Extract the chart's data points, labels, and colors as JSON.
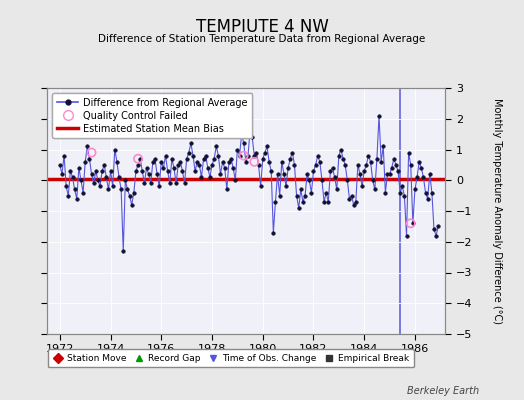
{
  "title": "TEMPIUTE 4 NW",
  "subtitle": "Difference of Station Temperature Data from Regional Average",
  "ylabel_right": "Monthly Temperature Anomaly Difference (°C)",
  "xlim": [
    1971.5,
    1987.2
  ],
  "ylim": [
    -5,
    3
  ],
  "yticks": [
    -5,
    -4,
    -3,
    -2,
    -1,
    0,
    1,
    2,
    3
  ],
  "xticks": [
    1972,
    1974,
    1976,
    1978,
    1980,
    1982,
    1984,
    1986
  ],
  "bias_line_y": 0.05,
  "bias_color": "#cc0000",
  "line_color": "#5555dd",
  "qc_color": "#ff88cc",
  "bg_color": "#e8e8e8",
  "plot_bg_color": "#f0f0f8",
  "watermark": "Berkeley Earth",
  "times": [
    1972.0,
    1972.083,
    1972.167,
    1972.25,
    1972.333,
    1972.417,
    1972.5,
    1972.583,
    1972.667,
    1972.75,
    1972.833,
    1972.917,
    1973.0,
    1973.083,
    1973.167,
    1973.25,
    1973.333,
    1973.417,
    1973.5,
    1973.583,
    1973.667,
    1973.75,
    1973.833,
    1973.917,
    1974.0,
    1974.083,
    1974.167,
    1974.25,
    1974.333,
    1974.417,
    1974.5,
    1974.583,
    1974.667,
    1974.75,
    1974.833,
    1974.917,
    1975.0,
    1975.083,
    1975.167,
    1975.25,
    1975.333,
    1975.417,
    1975.5,
    1975.583,
    1975.667,
    1975.75,
    1975.833,
    1975.917,
    1976.0,
    1976.083,
    1976.167,
    1976.25,
    1976.333,
    1976.417,
    1976.5,
    1976.583,
    1976.667,
    1976.75,
    1976.833,
    1976.917,
    1977.0,
    1977.083,
    1977.167,
    1977.25,
    1977.333,
    1977.417,
    1977.5,
    1977.583,
    1977.667,
    1977.75,
    1977.833,
    1977.917,
    1978.0,
    1978.083,
    1978.167,
    1978.25,
    1978.333,
    1978.417,
    1978.5,
    1978.583,
    1978.667,
    1978.75,
    1978.833,
    1978.917,
    1979.0,
    1979.083,
    1979.167,
    1979.25,
    1979.333,
    1979.417,
    1979.5,
    1979.583,
    1979.667,
    1979.75,
    1979.833,
    1979.917,
    1980.0,
    1980.083,
    1980.167,
    1980.25,
    1980.333,
    1980.417,
    1980.5,
    1980.583,
    1980.667,
    1980.75,
    1980.833,
    1980.917,
    1981.0,
    1981.083,
    1981.167,
    1981.25,
    1981.333,
    1981.417,
    1981.5,
    1981.583,
    1981.667,
    1981.75,
    1981.833,
    1981.917,
    1982.0,
    1982.083,
    1982.167,
    1982.25,
    1982.333,
    1982.417,
    1982.5,
    1982.583,
    1982.667,
    1982.75,
    1982.833,
    1982.917,
    1983.0,
    1983.083,
    1983.167,
    1983.25,
    1983.333,
    1983.417,
    1983.5,
    1983.583,
    1983.667,
    1983.75,
    1983.833,
    1983.917,
    1984.0,
    1984.083,
    1984.167,
    1984.25,
    1984.333,
    1984.417,
    1984.5,
    1984.583,
    1984.667,
    1984.75,
    1984.833,
    1984.917,
    1985.0,
    1985.083,
    1985.167,
    1985.25,
    1985.333,
    1985.417,
    1985.5,
    1985.583,
    1985.667,
    1985.75,
    1985.833,
    1985.917,
    1986.0,
    1986.083,
    1986.167,
    1986.25,
    1986.333,
    1986.417,
    1986.5,
    1986.583,
    1986.667,
    1986.75,
    1986.833,
    1986.917
  ],
  "values": [
    0.5,
    0.2,
    0.8,
    -0.2,
    -0.5,
    0.3,
    0.1,
    -0.3,
    -0.6,
    0.4,
    0.0,
    -0.4,
    0.6,
    1.1,
    0.7,
    0.2,
    -0.1,
    0.3,
    0.0,
    -0.2,
    0.3,
    0.5,
    0.1,
    -0.3,
    0.3,
    -0.2,
    1.0,
    0.6,
    0.1,
    -0.3,
    -2.3,
    0.0,
    -0.3,
    -0.5,
    -0.8,
    -0.4,
    0.3,
    0.5,
    0.7,
    0.3,
    -0.1,
    0.4,
    0.2,
    -0.1,
    0.6,
    0.7,
    0.2,
    -0.2,
    0.6,
    0.4,
    0.8,
    0.3,
    -0.1,
    0.7,
    0.4,
    -0.1,
    0.5,
    0.6,
    0.3,
    -0.1,
    0.7,
    0.9,
    1.2,
    0.8,
    0.3,
    0.6,
    0.5,
    0.1,
    0.7,
    0.8,
    0.4,
    0.1,
    0.5,
    0.7,
    1.1,
    0.8,
    0.2,
    0.6,
    0.4,
    -0.3,
    0.6,
    0.7,
    0.4,
    0.0,
    1.0,
    0.8,
    1.5,
    1.2,
    0.6,
    0.8,
    1.6,
    1.4,
    0.8,
    0.9,
    0.5,
    -0.2,
    0.7,
    0.9,
    1.1,
    0.6,
    0.3,
    -1.7,
    -0.7,
    0.2,
    -0.5,
    0.6,
    0.2,
    -0.2,
    0.4,
    0.7,
    0.9,
    0.5,
    -0.5,
    -0.9,
    -0.3,
    -0.7,
    -0.5,
    0.2,
    0.0,
    -0.4,
    0.3,
    0.5,
    0.8,
    0.6,
    0.0,
    -0.7,
    -0.4,
    -0.7,
    0.3,
    0.4,
    0.1,
    -0.3,
    0.8,
    1.0,
    0.7,
    0.5,
    0.0,
    -0.6,
    -0.5,
    -0.8,
    -0.7,
    0.5,
    0.2,
    -0.2,
    0.3,
    0.5,
    0.8,
    0.6,
    0.0,
    -0.3,
    0.7,
    2.1,
    0.6,
    1.1,
    -0.4,
    0.2,
    0.2,
    0.4,
    0.7,
    0.5,
    0.3,
    -0.4,
    -0.2,
    -0.5,
    -1.8,
    0.9,
    0.5,
    -1.4,
    -0.3,
    0.1,
    0.6,
    0.4,
    0.1,
    -0.4,
    -0.6,
    0.2,
    -0.4,
    -1.6,
    -1.8,
    -1.5
  ],
  "qc_failed_times": [
    1973.25,
    1975.083,
    1979.25,
    1979.667,
    1985.833
  ],
  "qc_failed_values": [
    0.9,
    0.7,
    0.8,
    0.6,
    -1.4
  ],
  "vertical_line_time": 1985.417,
  "legend_items": [
    {
      "label": "Difference from Regional Average",
      "color": "#5555dd",
      "type": "line_marker"
    },
    {
      "label": "Quality Control Failed",
      "color": "#ff88cc",
      "type": "circle"
    },
    {
      "label": "Estimated Station Mean Bias",
      "color": "#cc0000",
      "type": "line"
    }
  ],
  "bottom_legend_items": [
    {
      "label": "Station Move",
      "color": "#cc0000",
      "marker": "D"
    },
    {
      "label": "Record Gap",
      "color": "#009900",
      "marker": "^"
    },
    {
      "label": "Time of Obs. Change",
      "color": "#5555dd",
      "marker": "v"
    },
    {
      "label": "Empirical Break",
      "color": "#333333",
      "marker": "s"
    }
  ]
}
